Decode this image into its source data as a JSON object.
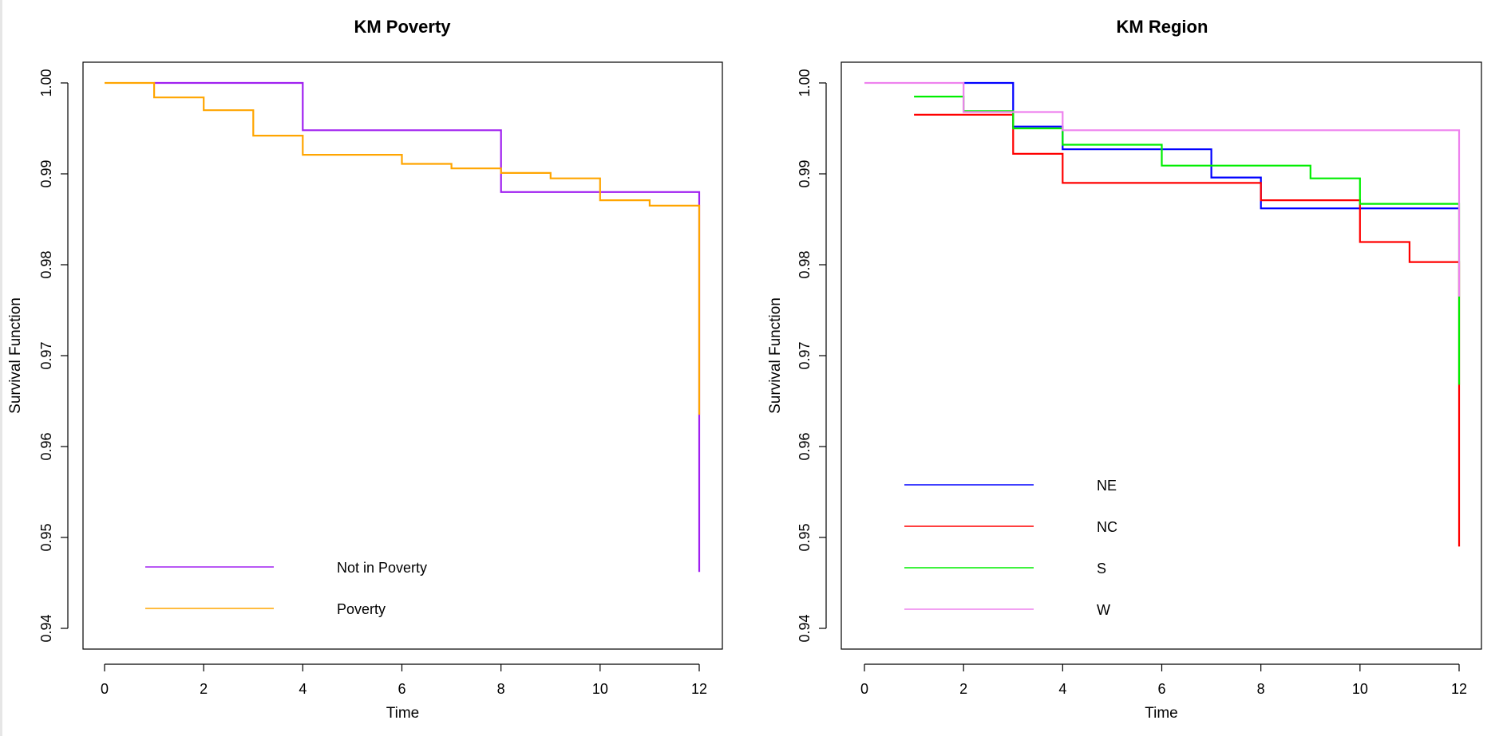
{
  "chart_data": [
    {
      "type": "line",
      "step": true,
      "title": "KM Poverty",
      "xlabel": "Time",
      "ylabel": "Survival Function",
      "xlim": [
        0,
        12
      ],
      "ylim": [
        0.94,
        1.0
      ],
      "xticks": [
        "0",
        "2",
        "4",
        "6",
        "8",
        "10",
        "12"
      ],
      "yticks": [
        "0.94",
        "0.95",
        "0.96",
        "0.97",
        "0.98",
        "0.99",
        "1.00"
      ],
      "grid": false,
      "legend_position": "bottom-left",
      "series": [
        {
          "name": "Not in Poverty",
          "color": "#a020f0",
          "x": [
            1,
            4,
            8,
            12,
            12
          ],
          "y": [
            1.0,
            0.9948,
            0.988,
            0.9635,
            0.9462
          ]
        },
        {
          "name": "Poverty",
          "color": "#ffa500",
          "x": [
            0,
            1,
            2,
            3,
            4,
            6,
            7,
            8,
            9,
            10,
            11,
            12,
            12
          ],
          "y": [
            1.0,
            0.9984,
            0.997,
            0.9942,
            0.9921,
            0.9911,
            0.9906,
            0.9901,
            0.9895,
            0.9871,
            0.9865,
            0.9865,
            0.9635
          ]
        }
      ]
    },
    {
      "type": "line",
      "step": true,
      "title": "KM Region",
      "xlabel": "Time",
      "ylabel": "Survival Function",
      "xlim": [
        0,
        12
      ],
      "ylim": [
        0.94,
        1.0
      ],
      "xticks": [
        "0",
        "2",
        "4",
        "6",
        "8",
        "10",
        "12"
      ],
      "yticks": [
        "0.94",
        "0.95",
        "0.96",
        "0.97",
        "0.98",
        "0.99",
        "1.00"
      ],
      "grid": false,
      "legend_position": "bottom-left",
      "series": [
        {
          "name": "NE",
          "color": "#0000ff",
          "x": [
            2,
            3,
            4,
            7,
            8,
            12
          ],
          "y": [
            1.0,
            0.9952,
            0.9927,
            0.9896,
            0.9862,
            0.9862
          ]
        },
        {
          "name": "NC",
          "color": "#ff0000",
          "x": [
            1,
            3,
            4,
            8,
            10,
            11,
            12,
            12
          ],
          "y": [
            0.9965,
            0.9922,
            0.989,
            0.9871,
            0.9825,
            0.9803,
            0.9668,
            0.949
          ]
        },
        {
          "name": "S",
          "color": "#00ee00",
          "x": [
            1,
            2,
            3,
            4,
            6,
            9,
            10,
            12,
            12
          ],
          "y": [
            0.9985,
            0.9969,
            0.995,
            0.9932,
            0.9909,
            0.9895,
            0.9867,
            0.9765,
            0.9668
          ]
        },
        {
          "name": "W",
          "color": "#ee82ee",
          "x": [
            0,
            2,
            4,
            12,
            12
          ],
          "y": [
            1.0,
            0.9968,
            0.9948,
            0.9765,
            0.9765
          ]
        }
      ]
    }
  ]
}
